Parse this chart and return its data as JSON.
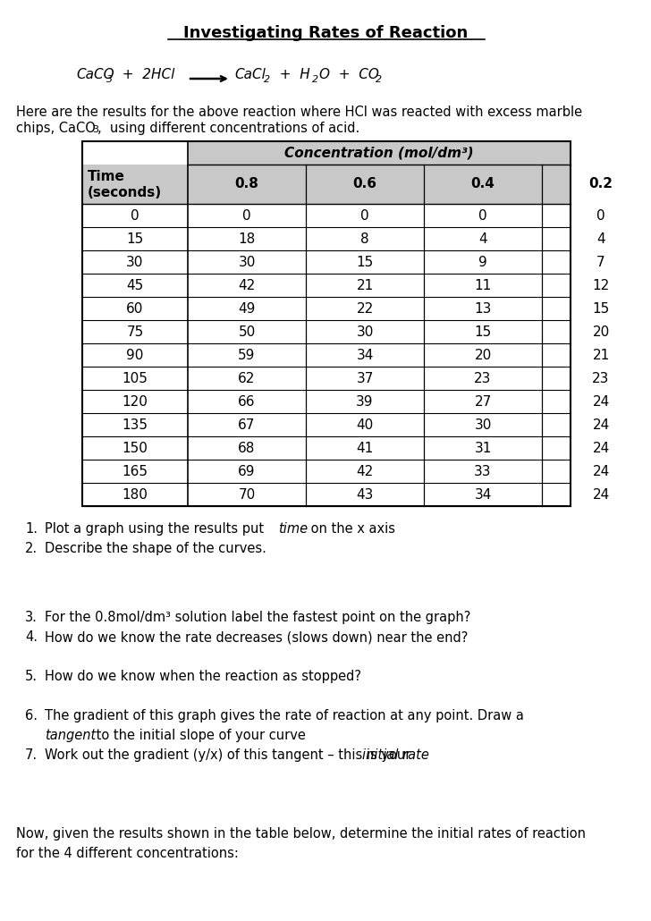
{
  "title": "Investigating Rates of Reaction",
  "background_color": "#ffffff",
  "intro_text_line1": "Here are the results for the above reaction where HCl was reacted with excess marble",
  "intro_text_line2": "chips, CaCO₃,  using different concentrations of acid.",
  "table_data": [
    [
      0,
      0,
      0,
      0,
      0
    ],
    [
      15,
      18,
      8,
      4,
      4
    ],
    [
      30,
      30,
      15,
      9,
      7
    ],
    [
      45,
      42,
      21,
      11,
      12
    ],
    [
      60,
      49,
      22,
      13,
      15
    ],
    [
      75,
      50,
      30,
      15,
      20
    ],
    [
      90,
      59,
      34,
      20,
      21
    ],
    [
      105,
      62,
      37,
      23,
      23
    ],
    [
      120,
      66,
      39,
      27,
      24
    ],
    [
      135,
      67,
      40,
      30,
      24
    ],
    [
      150,
      68,
      41,
      31,
      24
    ],
    [
      165,
      69,
      42,
      33,
      24
    ],
    [
      180,
      70,
      43,
      34,
      24
    ]
  ],
  "header_bg": "#c8c8c8",
  "conc_values": [
    "0.8",
    "0.6",
    "0.4",
    "0.2"
  ],
  "footer_line1": "Now, given the results shown in the table below, determine the initial rates of reaction",
  "footer_line2": "for the 4 different concentrations:"
}
